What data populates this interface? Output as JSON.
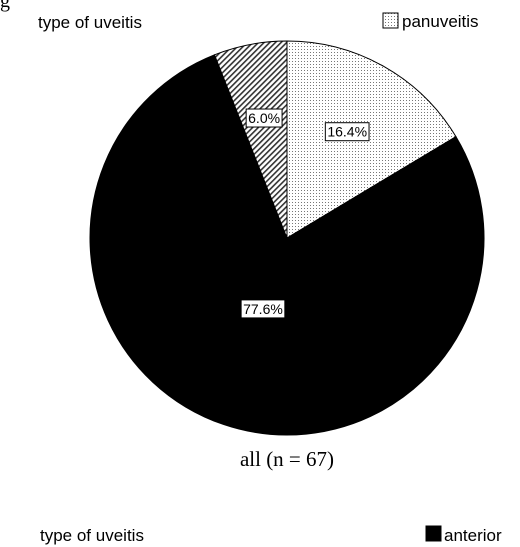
{
  "header_fragment": "g",
  "chart_data": [
    {
      "type": "pie",
      "title": "type of uveitis",
      "subtitle": "all (n = 67)",
      "legend": {
        "placement": "top-right",
        "entries": [
          {
            "label": "panuveitis",
            "fill": "dotted"
          }
        ]
      },
      "slices": [
        {
          "label": "panuveitis",
          "value": 16.4,
          "display": "16.4%",
          "fill": "dotted"
        },
        {
          "label": "anterior",
          "value": 77.6,
          "display": "77.6%",
          "fill": "#000000"
        },
        {
          "label": "",
          "value": 6.0,
          "display": "6.0%",
          "fill": "hatched"
        }
      ]
    },
    {
      "type": "pie",
      "title": "type of uveitis",
      "legend": {
        "placement": "top-right",
        "entries": [
          {
            "label": "anterior",
            "fill": "#000000"
          }
        ]
      }
    }
  ]
}
